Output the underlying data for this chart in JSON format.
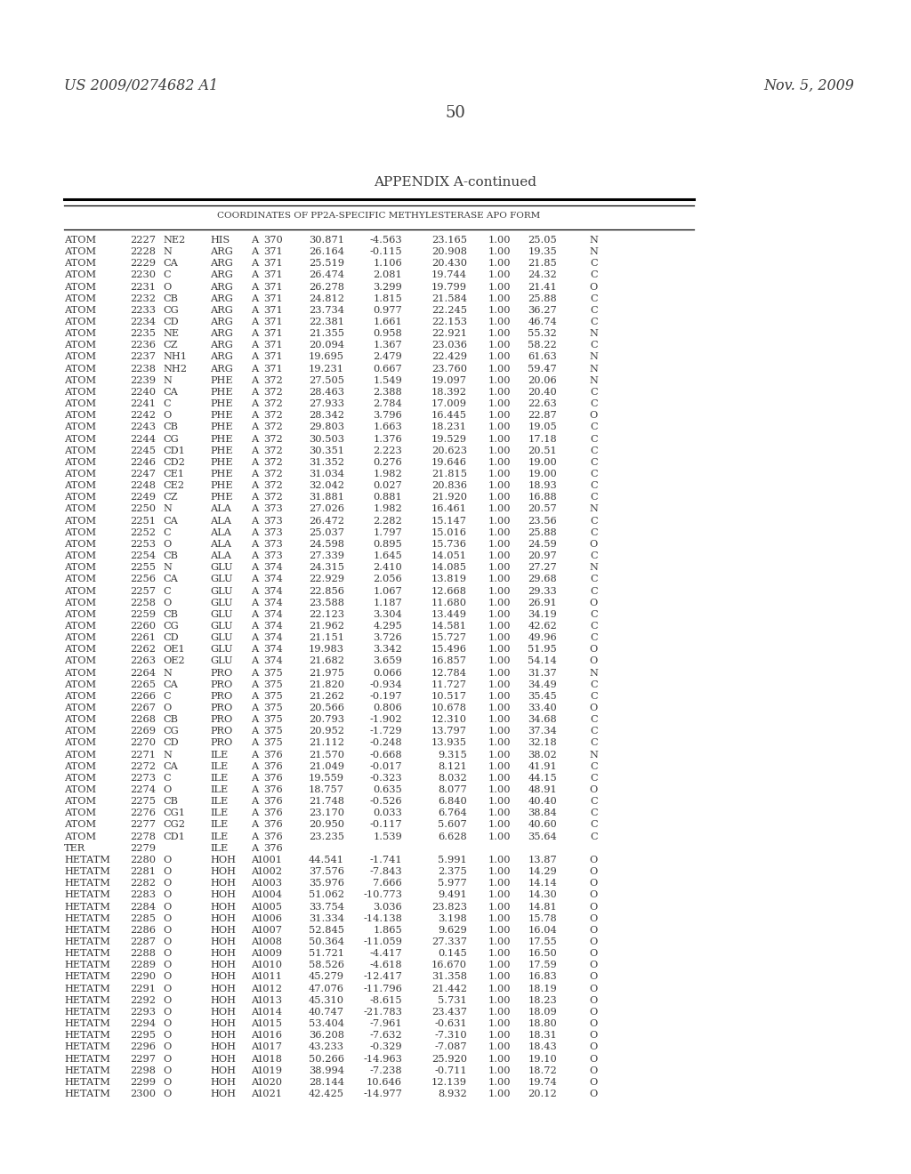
{
  "patent_left": "US 2009/0274682 A1",
  "patent_right": "Nov. 5, 2009",
  "page_number": "50",
  "appendix_title": "APPENDIX A-continued",
  "table_subtitle": "COORDINATES OF PP2A-SPECIFIC METHYLESTERASE APO FORM",
  "background_color": "#ffffff",
  "text_color": "#3a3a3a",
  "rows": [
    [
      "ATOM",
      "2227",
      "NE2",
      "HIS",
      "A",
      "370",
      "30.871",
      "-4.563",
      "23.165",
      "1.00",
      "25.05",
      "N"
    ],
    [
      "ATOM",
      "2228",
      "N",
      "ARG",
      "A",
      "371",
      "26.164",
      "-0.115",
      "20.908",
      "1.00",
      "19.35",
      "N"
    ],
    [
      "ATOM",
      "2229",
      "CA",
      "ARG",
      "A",
      "371",
      "25.519",
      "1.106",
      "20.430",
      "1.00",
      "21.85",
      "C"
    ],
    [
      "ATOM",
      "2230",
      "C",
      "ARG",
      "A",
      "371",
      "26.474",
      "2.081",
      "19.744",
      "1.00",
      "24.32",
      "C"
    ],
    [
      "ATOM",
      "2231",
      "O",
      "ARG",
      "A",
      "371",
      "26.278",
      "3.299",
      "19.799",
      "1.00",
      "21.41",
      "O"
    ],
    [
      "ATOM",
      "2232",
      "CB",
      "ARG",
      "A",
      "371",
      "24.812",
      "1.815",
      "21.584",
      "1.00",
      "25.88",
      "C"
    ],
    [
      "ATOM",
      "2233",
      "CG",
      "ARG",
      "A",
      "371",
      "23.734",
      "0.977",
      "22.245",
      "1.00",
      "36.27",
      "C"
    ],
    [
      "ATOM",
      "2234",
      "CD",
      "ARG",
      "A",
      "371",
      "22.381",
      "1.661",
      "22.153",
      "1.00",
      "46.74",
      "C"
    ],
    [
      "ATOM",
      "2235",
      "NE",
      "ARG",
      "A",
      "371",
      "21.355",
      "0.958",
      "22.921",
      "1.00",
      "55.32",
      "N"
    ],
    [
      "ATOM",
      "2236",
      "CZ",
      "ARG",
      "A",
      "371",
      "20.094",
      "1.367",
      "23.036",
      "1.00",
      "58.22",
      "C"
    ],
    [
      "ATOM",
      "2237",
      "NH1",
      "ARG",
      "A",
      "371",
      "19.695",
      "2.479",
      "22.429",
      "1.00",
      "61.63",
      "N"
    ],
    [
      "ATOM",
      "2238",
      "NH2",
      "ARG",
      "A",
      "371",
      "19.231",
      "0.667",
      "23.760",
      "1.00",
      "59.47",
      "N"
    ],
    [
      "ATOM",
      "2239",
      "N",
      "PHE",
      "A",
      "372",
      "27.505",
      "1.549",
      "19.097",
      "1.00",
      "20.06",
      "N"
    ],
    [
      "ATOM",
      "2240",
      "CA",
      "PHE",
      "A",
      "372",
      "28.463",
      "2.388",
      "18.392",
      "1.00",
      "20.40",
      "C"
    ],
    [
      "ATOM",
      "2241",
      "C",
      "PHE",
      "A",
      "372",
      "27.933",
      "2.784",
      "17.009",
      "1.00",
      "22.63",
      "C"
    ],
    [
      "ATOM",
      "2242",
      "O",
      "PHE",
      "A",
      "372",
      "28.342",
      "3.796",
      "16.445",
      "1.00",
      "22.87",
      "O"
    ],
    [
      "ATOM",
      "2243",
      "CB",
      "PHE",
      "A",
      "372",
      "29.803",
      "1.663",
      "18.231",
      "1.00",
      "19.05",
      "C"
    ],
    [
      "ATOM",
      "2244",
      "CG",
      "PHE",
      "A",
      "372",
      "30.503",
      "1.376",
      "19.529",
      "1.00",
      "17.18",
      "C"
    ],
    [
      "ATOM",
      "2245",
      "CD1",
      "PHE",
      "A",
      "372",
      "30.351",
      "2.223",
      "20.623",
      "1.00",
      "20.51",
      "C"
    ],
    [
      "ATOM",
      "2246",
      "CD2",
      "PHE",
      "A",
      "372",
      "31.352",
      "0.276",
      "19.646",
      "1.00",
      "19.00",
      "C"
    ],
    [
      "ATOM",
      "2247",
      "CE1",
      "PHE",
      "A",
      "372",
      "31.034",
      "1.982",
      "21.815",
      "1.00",
      "19.00",
      "C"
    ],
    [
      "ATOM",
      "2248",
      "CE2",
      "PHE",
      "A",
      "372",
      "32.042",
      "0.027",
      "20.836",
      "1.00",
      "18.93",
      "C"
    ],
    [
      "ATOM",
      "2249",
      "CZ",
      "PHE",
      "A",
      "372",
      "31.881",
      "0.881",
      "21.920",
      "1.00",
      "16.88",
      "C"
    ],
    [
      "ATOM",
      "2250",
      "N",
      "ALA",
      "A",
      "373",
      "27.026",
      "1.982",
      "16.461",
      "1.00",
      "20.57",
      "N"
    ],
    [
      "ATOM",
      "2251",
      "CA",
      "ALA",
      "A",
      "373",
      "26.472",
      "2.282",
      "15.147",
      "1.00",
      "23.56",
      "C"
    ],
    [
      "ATOM",
      "2252",
      "C",
      "ALA",
      "A",
      "373",
      "25.037",
      "1.797",
      "15.016",
      "1.00",
      "25.88",
      "C"
    ],
    [
      "ATOM",
      "2253",
      "O",
      "ALA",
      "A",
      "373",
      "24.598",
      "0.895",
      "15.736",
      "1.00",
      "24.59",
      "O"
    ],
    [
      "ATOM",
      "2254",
      "CB",
      "ALA",
      "A",
      "373",
      "27.339",
      "1.645",
      "14.051",
      "1.00",
      "20.97",
      "C"
    ],
    [
      "ATOM",
      "2255",
      "N",
      "GLU",
      "A",
      "374",
      "24.315",
      "2.410",
      "14.085",
      "1.00",
      "27.27",
      "N"
    ],
    [
      "ATOM",
      "2256",
      "CA",
      "GLU",
      "A",
      "374",
      "22.929",
      "2.056",
      "13.819",
      "1.00",
      "29.68",
      "C"
    ],
    [
      "ATOM",
      "2257",
      "C",
      "GLU",
      "A",
      "374",
      "22.856",
      "1.067",
      "12.668",
      "1.00",
      "29.33",
      "C"
    ],
    [
      "ATOM",
      "2258",
      "O",
      "GLU",
      "A",
      "374",
      "23.588",
      "1.187",
      "11.680",
      "1.00",
      "26.91",
      "O"
    ],
    [
      "ATOM",
      "2259",
      "CB",
      "GLU",
      "A",
      "374",
      "22.123",
      "3.304",
      "13.449",
      "1.00",
      "34.19",
      "C"
    ],
    [
      "ATOM",
      "2260",
      "CG",
      "GLU",
      "A",
      "374",
      "21.962",
      "4.295",
      "14.581",
      "1.00",
      "42.62",
      "C"
    ],
    [
      "ATOM",
      "2261",
      "CD",
      "GLU",
      "A",
      "374",
      "21.151",
      "3.726",
      "15.727",
      "1.00",
      "49.96",
      "C"
    ],
    [
      "ATOM",
      "2262",
      "OE1",
      "GLU",
      "A",
      "374",
      "19.983",
      "3.342",
      "15.496",
      "1.00",
      "51.95",
      "O"
    ],
    [
      "ATOM",
      "2263",
      "OE2",
      "GLU",
      "A",
      "374",
      "21.682",
      "3.659",
      "16.857",
      "1.00",
      "54.14",
      "O"
    ],
    [
      "ATOM",
      "2264",
      "N",
      "PRO",
      "A",
      "375",
      "21.975",
      "0.066",
      "12.784",
      "1.00",
      "31.37",
      "N"
    ],
    [
      "ATOM",
      "2265",
      "CA",
      "PRO",
      "A",
      "375",
      "21.820",
      "-0.934",
      "11.727",
      "1.00",
      "34.49",
      "C"
    ],
    [
      "ATOM",
      "2266",
      "C",
      "PRO",
      "A",
      "375",
      "21.262",
      "-0.197",
      "10.517",
      "1.00",
      "35.45",
      "C"
    ],
    [
      "ATOM",
      "2267",
      "O",
      "PRO",
      "A",
      "375",
      "20.566",
      "0.806",
      "10.678",
      "1.00",
      "33.40",
      "O"
    ],
    [
      "ATOM",
      "2268",
      "CB",
      "PRO",
      "A",
      "375",
      "20.793",
      "-1.902",
      "12.310",
      "1.00",
      "34.68",
      "C"
    ],
    [
      "ATOM",
      "2269",
      "CG",
      "PRO",
      "A",
      "375",
      "20.952",
      "-1.729",
      "13.797",
      "1.00",
      "37.34",
      "C"
    ],
    [
      "ATOM",
      "2270",
      "CD",
      "PRO",
      "A",
      "375",
      "21.112",
      "-0.248",
      "13.935",
      "1.00",
      "32.18",
      "C"
    ],
    [
      "ATOM",
      "2271",
      "N",
      "ILE",
      "A",
      "376",
      "21.570",
      "-0.668",
      "9.315",
      "1.00",
      "38.02",
      "N"
    ],
    [
      "ATOM",
      "2272",
      "CA",
      "ILE",
      "A",
      "376",
      "21.049",
      "-0.017",
      "8.121",
      "1.00",
      "41.91",
      "C"
    ],
    [
      "ATOM",
      "2273",
      "C",
      "ILE",
      "A",
      "376",
      "19.559",
      "-0.323",
      "8.032",
      "1.00",
      "44.15",
      "C"
    ],
    [
      "ATOM",
      "2274",
      "O",
      "ILE",
      "A",
      "376",
      "18.757",
      "0.635",
      "8.077",
      "1.00",
      "48.91",
      "O"
    ],
    [
      "ATOM",
      "2275",
      "CB",
      "ILE",
      "A",
      "376",
      "21.748",
      "-0.526",
      "6.840",
      "1.00",
      "40.40",
      "C"
    ],
    [
      "ATOM",
      "2276",
      "CG1",
      "ILE",
      "A",
      "376",
      "23.170",
      "0.033",
      "6.764",
      "1.00",
      "38.84",
      "C"
    ],
    [
      "ATOM",
      "2277",
      "CG2",
      "ILE",
      "A",
      "376",
      "20.950",
      "-0.117",
      "5.607",
      "1.00",
      "40.60",
      "C"
    ],
    [
      "ATOM",
      "2278",
      "CD1",
      "ILE",
      "A",
      "376",
      "23.235",
      "1.539",
      "6.628",
      "1.00",
      "35.64",
      "C"
    ],
    [
      "TER",
      "2279",
      "",
      "ILE",
      "A",
      "376",
      "",
      "",
      "",
      "",
      "",
      ""
    ],
    [
      "HETATM",
      "2280",
      "O",
      "HOH",
      "A",
      "1001",
      "44.541",
      "-1.741",
      "5.991",
      "1.00",
      "13.87",
      "O"
    ],
    [
      "HETATM",
      "2281",
      "O",
      "HOH",
      "A",
      "1002",
      "37.576",
      "-7.843",
      "2.375",
      "1.00",
      "14.29",
      "O"
    ],
    [
      "HETATM",
      "2282",
      "O",
      "HOH",
      "A",
      "1003",
      "35.976",
      "7.666",
      "5.977",
      "1.00",
      "14.14",
      "O"
    ],
    [
      "HETATM",
      "2283",
      "O",
      "HOH",
      "A",
      "1004",
      "51.062",
      "-10.773",
      "9.491",
      "1.00",
      "14.30",
      "O"
    ],
    [
      "HETATM",
      "2284",
      "O",
      "HOH",
      "A",
      "1005",
      "33.754",
      "3.036",
      "23.823",
      "1.00",
      "14.81",
      "O"
    ],
    [
      "HETATM",
      "2285",
      "O",
      "HOH",
      "A",
      "1006",
      "31.334",
      "-14.138",
      "3.198",
      "1.00",
      "15.78",
      "O"
    ],
    [
      "HETATM",
      "2286",
      "O",
      "HOH",
      "A",
      "1007",
      "52.845",
      "1.865",
      "9.629",
      "1.00",
      "16.04",
      "O"
    ],
    [
      "HETATM",
      "2287",
      "O",
      "HOH",
      "A",
      "1008",
      "50.364",
      "-11.059",
      "27.337",
      "1.00",
      "17.55",
      "O"
    ],
    [
      "HETATM",
      "2288",
      "O",
      "HOH",
      "A",
      "1009",
      "51.721",
      "-4.417",
      "0.145",
      "1.00",
      "16.50",
      "O"
    ],
    [
      "HETATM",
      "2289",
      "O",
      "HOH",
      "A",
      "1010",
      "58.526",
      "-4.618",
      "16.670",
      "1.00",
      "17.59",
      "O"
    ],
    [
      "HETATM",
      "2290",
      "O",
      "HOH",
      "A",
      "1011",
      "45.279",
      "-12.417",
      "31.358",
      "1.00",
      "16.83",
      "O"
    ],
    [
      "HETATM",
      "2291",
      "O",
      "HOH",
      "A",
      "1012",
      "47.076",
      "-11.796",
      "21.442",
      "1.00",
      "18.19",
      "O"
    ],
    [
      "HETATM",
      "2292",
      "O",
      "HOH",
      "A",
      "1013",
      "45.310",
      "-8.615",
      "5.731",
      "1.00",
      "18.23",
      "O"
    ],
    [
      "HETATM",
      "2293",
      "O",
      "HOH",
      "A",
      "1014",
      "40.747",
      "-21.783",
      "23.437",
      "1.00",
      "18.09",
      "O"
    ],
    [
      "HETATM",
      "2294",
      "O",
      "HOH",
      "A",
      "1015",
      "53.404",
      "-7.961",
      "-0.631",
      "1.00",
      "18.80",
      "O"
    ],
    [
      "HETATM",
      "2295",
      "O",
      "HOH",
      "A",
      "1016",
      "36.208",
      "-7.632",
      "-7.310",
      "1.00",
      "18.31",
      "O"
    ],
    [
      "HETATM",
      "2296",
      "O",
      "HOH",
      "A",
      "1017",
      "43.233",
      "-0.329",
      "-7.087",
      "1.00",
      "18.43",
      "O"
    ],
    [
      "HETATM",
      "2297",
      "O",
      "HOH",
      "A",
      "1018",
      "50.266",
      "-14.963",
      "25.920",
      "1.00",
      "19.10",
      "O"
    ],
    [
      "HETATM",
      "2298",
      "O",
      "HOH",
      "A",
      "1019",
      "38.994",
      "-7.238",
      "-0.711",
      "1.00",
      "18.72",
      "O"
    ],
    [
      "HETATM",
      "2299",
      "O",
      "HOH",
      "A",
      "1020",
      "28.144",
      "10.646",
      "12.139",
      "1.00",
      "19.74",
      "O"
    ],
    [
      "HETATM",
      "2300",
      "O",
      "HOH",
      "A",
      "1021",
      "42.425",
      "-14.977",
      "8.932",
      "1.00",
      "20.12",
      "O"
    ]
  ]
}
